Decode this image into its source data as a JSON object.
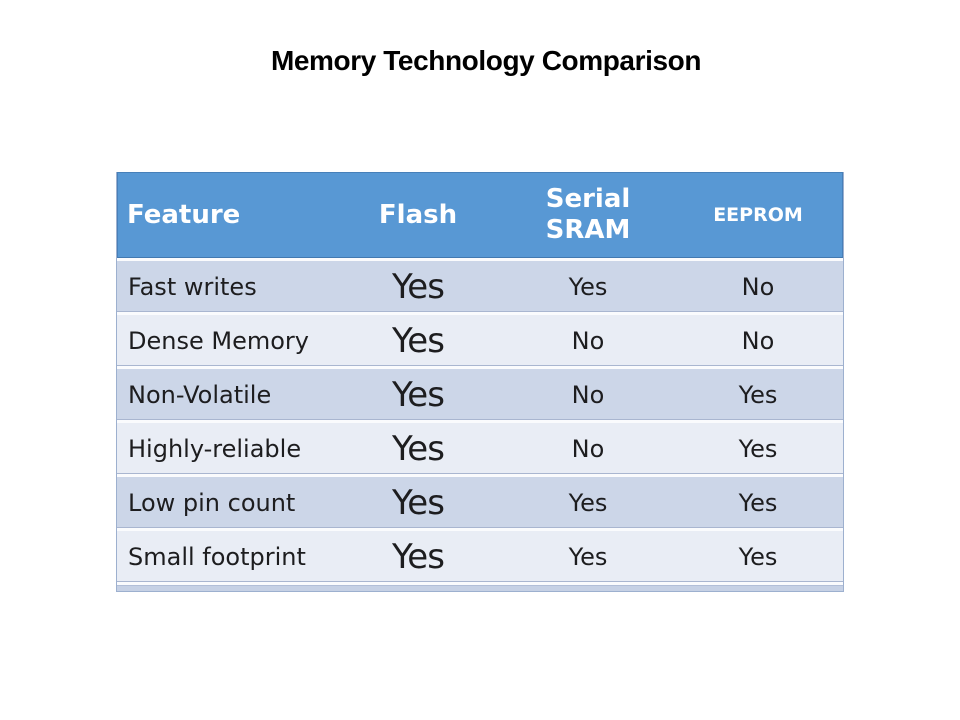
{
  "page": {
    "background": "#ffffff"
  },
  "title": "Memory Technology Comparison",
  "table": {
    "header": {
      "feature": "Feature",
      "flash": "Flash",
      "serial_sram_line1": "Serial",
      "serial_sram_line2": "SRAM",
      "eeprom": "EEPROM"
    },
    "row_keys": [
      "feature",
      "flash",
      "serial_sram",
      "eeprom"
    ],
    "rows": [
      {
        "feature": "Fast writes",
        "flash": "Yes",
        "serial_sram": "Yes",
        "eeprom": "No"
      },
      {
        "feature": "Dense Memory",
        "flash": "Yes",
        "serial_sram": "No",
        "eeprom": "No"
      },
      {
        "feature": "Non-Volatile",
        "flash": "Yes",
        "serial_sram": "No",
        "eeprom": "Yes"
      },
      {
        "feature": "Highly-reliable",
        "flash": "Yes",
        "serial_sram": "No",
        "eeprom": "Yes"
      },
      {
        "feature": "Low pin count",
        "flash": "Yes",
        "serial_sram": "Yes",
        "eeprom": "Yes"
      },
      {
        "feature": "Small footprint",
        "flash": "Yes",
        "serial_sram": "Yes",
        "eeprom": "Yes"
      }
    ],
    "colors": {
      "header_bg": "#5898d4",
      "header_text": "#ffffff",
      "row_band_dark": "#ccd6e8",
      "row_band_light": "#e9edf5",
      "separator": "#fafbfd",
      "groove_line": "#a9b6d0",
      "outer_border": "#9db0cf",
      "bottom_band": "#c6d1e5",
      "body_text": "#1d1d1f",
      "title_text": "#000000"
    }
  }
}
